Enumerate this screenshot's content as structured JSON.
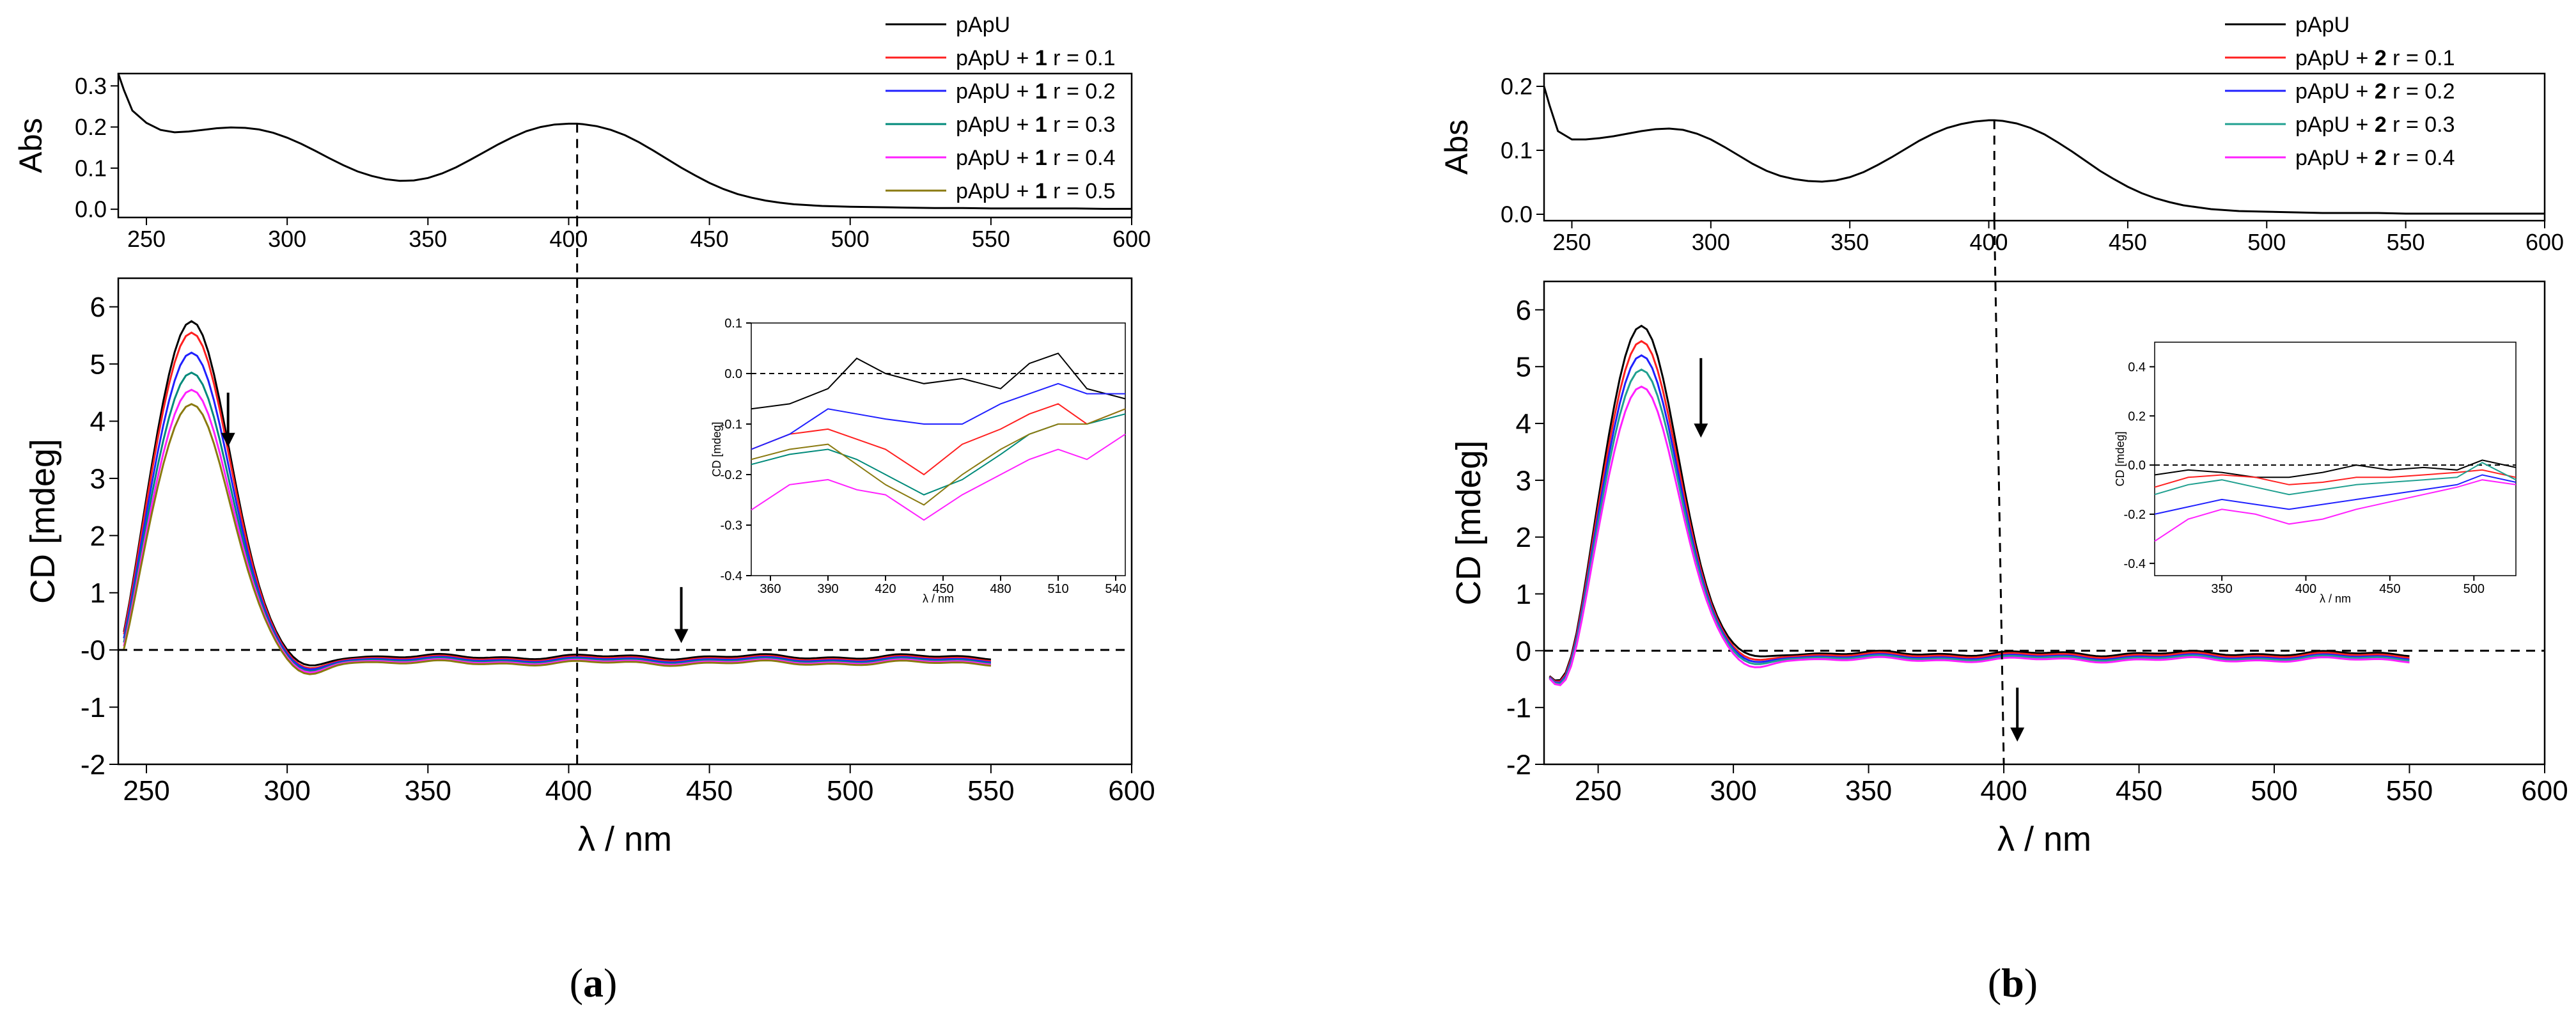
{
  "figure": {
    "panels": [
      {
        "caption_open": "(",
        "caption_letter": "a",
        "caption_close": ")",
        "legend": [
          {
            "label": "pApU",
            "color": "#000000"
          },
          {
            "prefix": "pApU + ",
            "bold": "1",
            "suffix": " r = 0.1",
            "color": "#ff2020"
          },
          {
            "prefix": "pApU + ",
            "bold": "1",
            "suffix": " r = 0.2",
            "color": "#2020ff"
          },
          {
            "prefix": "pApU + ",
            "bold": "1",
            "suffix": " r = 0.3",
            "color": "#008a7a"
          },
          {
            "prefix": "pApU + ",
            "bold": "1",
            "suffix": " r = 0.4",
            "color": "#ff20ff"
          },
          {
            "prefix": "pApU + ",
            "bold": "1",
            "suffix": " r = 0.5",
            "color": "#8a7a10"
          }
        ]
      },
      {
        "caption_open": "(",
        "caption_letter": "b",
        "caption_close": ")",
        "legend": [
          {
            "label": "pApU",
            "color": "#000000"
          },
          {
            "prefix": "pApU + ",
            "bold": "2",
            "suffix": " r = 0.1",
            "color": "#ff2020"
          },
          {
            "prefix": "pApU + ",
            "bold": "2",
            "suffix": " r = 0.2",
            "color": "#2020ff"
          },
          {
            "prefix": "pApU + ",
            "bold": "2",
            "suffix": " r = 0.3",
            "color": "#20a090"
          },
          {
            "prefix": "pApU + ",
            "bold": "2",
            "suffix": " r = 0.4",
            "color": "#ff20ff"
          }
        ]
      }
    ]
  },
  "chart_data": [
    {
      "id": "a-abs",
      "type": "line",
      "title": "",
      "xlabel": "",
      "ylabel": "Abs",
      "xlim": [
        240,
        600
      ],
      "ylim": [
        -0.02,
        0.33
      ],
      "grid": false,
      "xticks": [
        250,
        300,
        350,
        400,
        450,
        500,
        550,
        600
      ],
      "yticks": [
        0.0,
        0.1,
        0.2,
        0.3
      ],
      "ytick_labels": [
        "0.0",
        "0.1",
        "0.2",
        "0.3"
      ],
      "marker_x": 403,
      "series": [
        {
          "name": "pApU",
          "color": "#000000",
          "x": [
            240,
            242,
            245,
            250,
            255,
            260,
            265,
            270,
            275,
            280,
            285,
            290,
            295,
            300,
            305,
            310,
            315,
            320,
            325,
            330,
            335,
            340,
            345,
            350,
            355,
            360,
            365,
            370,
            375,
            380,
            385,
            390,
            395,
            400,
            403,
            405,
            410,
            415,
            420,
            425,
            430,
            435,
            440,
            445,
            450,
            455,
            460,
            465,
            470,
            475,
            480,
            490,
            500,
            510,
            520,
            530,
            540,
            550,
            560,
            570,
            580,
            590,
            600
          ],
          "y": [
            0.33,
            0.29,
            0.24,
            0.21,
            0.193,
            0.187,
            0.189,
            0.193,
            0.197,
            0.199,
            0.198,
            0.194,
            0.186,
            0.174,
            0.159,
            0.142,
            0.124,
            0.107,
            0.092,
            0.081,
            0.073,
            0.069,
            0.07,
            0.076,
            0.087,
            0.102,
            0.12,
            0.139,
            0.158,
            0.175,
            0.19,
            0.2,
            0.206,
            0.208,
            0.208,
            0.207,
            0.202,
            0.193,
            0.18,
            0.163,
            0.143,
            0.122,
            0.101,
            0.082,
            0.064,
            0.049,
            0.037,
            0.028,
            0.021,
            0.016,
            0.012,
            0.008,
            0.006,
            0.005,
            0.004,
            0.003,
            0.003,
            0.002,
            0.002,
            0.002,
            0.002,
            0.001,
            0.001
          ]
        }
      ]
    },
    {
      "id": "a-cd",
      "type": "line",
      "title": "",
      "xlabel": "λ / nm",
      "ylabel": "CD [mdeg]",
      "xlim": [
        240,
        600
      ],
      "ylim": [
        -2,
        6.5
      ],
      "grid": false,
      "xticks": [
        250,
        300,
        350,
        400,
        450,
        500,
        550,
        600
      ],
      "yticks": [
        -2,
        -1,
        0,
        1,
        2,
        3,
        4,
        5,
        6
      ],
      "ytick_labels": [
        "-2",
        "-1",
        "-0",
        "1",
        "2",
        "3",
        "4",
        "5",
        "6"
      ],
      "zero_line": true,
      "marker_x": 403,
      "arrows": [
        {
          "x": 279,
          "y_from": 4.5,
          "y_to": 3.55
        },
        {
          "x": 440,
          "y_from": 1.1,
          "y_to": 0.12
        }
      ],
      "series": [
        {
          "name": "pApU",
          "color": "#000000",
          "peak": 5.75,
          "min": -0.35,
          "tail": -0.12
        },
        {
          "name": "pApU + 1 r = 0.1",
          "color": "#ff2020",
          "peak": 5.55,
          "min": -0.4,
          "tail": -0.15
        },
        {
          "name": "pApU + 1 r = 0.2",
          "color": "#2020ff",
          "peak": 5.2,
          "min": -0.42,
          "tail": -0.17
        },
        {
          "name": "pApU + 1 r = 0.3",
          "color": "#008a7a",
          "peak": 4.85,
          "min": -0.45,
          "tail": -0.19
        },
        {
          "name": "pApU + 1 r = 0.4",
          "color": "#ff20ff",
          "peak": 4.55,
          "min": -0.47,
          "tail": -0.21
        },
        {
          "name": "pApU + 1 r = 0.5",
          "color": "#8a7a10",
          "peak": 4.3,
          "min": -0.5,
          "tail": -0.23
        }
      ]
    },
    {
      "id": "a-inset",
      "type": "line",
      "title": "",
      "xlabel": "λ / nm",
      "ylabel": "CD [mdeg]",
      "xlim": [
        350,
        545
      ],
      "ylim": [
        -0.4,
        0.1
      ],
      "grid": false,
      "xticks": [
        360,
        390,
        420,
        450,
        480,
        510,
        540
      ],
      "yticks": [
        -0.4,
        -0.3,
        -0.2,
        -0.1,
        0.0,
        0.1
      ],
      "ytick_labels": [
        "-0.4",
        "-0.3",
        "-0.2",
        "-0.1",
        "0.0",
        "0.1"
      ],
      "zero_line": true,
      "series": [
        {
          "name": "pApU",
          "color": "#000000",
          "x": [
            350,
            370,
            390,
            405,
            420,
            440,
            460,
            480,
            495,
            510,
            525,
            545
          ],
          "y": [
            -0.07,
            -0.06,
            -0.03,
            0.03,
            0.0,
            -0.02,
            -0.01,
            -0.03,
            0.02,
            0.04,
            -0.03,
            -0.05
          ]
        },
        {
          "name": "pApU + 1 r = 0.1",
          "color": "#ff2020",
          "x": [
            350,
            370,
            390,
            405,
            420,
            440,
            460,
            480,
            495,
            510,
            525,
            545
          ],
          "y": [
            -0.15,
            -0.12,
            -0.11,
            -0.13,
            -0.15,
            -0.2,
            -0.14,
            -0.11,
            -0.08,
            -0.06,
            -0.1,
            -0.07
          ]
        },
        {
          "name": "pApU + 1 r = 0.2",
          "color": "#2020ff",
          "x": [
            350,
            370,
            390,
            405,
            420,
            440,
            460,
            480,
            495,
            510,
            525,
            545
          ],
          "y": [
            -0.15,
            -0.12,
            -0.07,
            -0.08,
            -0.09,
            -0.1,
            -0.1,
            -0.06,
            -0.04,
            -0.02,
            -0.04,
            -0.04
          ]
        },
        {
          "name": "pApU + 1 r = 0.3",
          "color": "#008a7a",
          "x": [
            350,
            370,
            390,
            405,
            420,
            440,
            460,
            480,
            495,
            510,
            525,
            545
          ],
          "y": [
            -0.18,
            -0.16,
            -0.15,
            -0.17,
            -0.2,
            -0.24,
            -0.21,
            -0.16,
            -0.12,
            -0.1,
            -0.1,
            -0.08
          ]
        },
        {
          "name": "pApU + 1 r = 0.4",
          "color": "#ff20ff",
          "x": [
            350,
            370,
            390,
            405,
            420,
            440,
            460,
            480,
            495,
            510,
            525,
            545
          ],
          "y": [
            -0.27,
            -0.22,
            -0.21,
            -0.23,
            -0.24,
            -0.29,
            -0.24,
            -0.2,
            -0.17,
            -0.15,
            -0.17,
            -0.12
          ]
        },
        {
          "name": "pApU + 1 r = 0.5",
          "color": "#8a7a10",
          "x": [
            350,
            370,
            390,
            405,
            420,
            440,
            460,
            480,
            495,
            510,
            525,
            545
          ],
          "y": [
            -0.17,
            -0.15,
            -0.14,
            -0.18,
            -0.22,
            -0.26,
            -0.2,
            -0.15,
            -0.12,
            -0.1,
            -0.1,
            -0.07
          ]
        }
      ]
    },
    {
      "id": "b-abs",
      "type": "line",
      "title": "",
      "xlabel": "",
      "ylabel": "Abs",
      "xlim": [
        240,
        600
      ],
      "ylim": [
        -0.01,
        0.22
      ],
      "grid": false,
      "xticks": [
        250,
        300,
        350,
        400,
        450,
        500,
        550,
        600
      ],
      "yticks": [
        0.0,
        0.1,
        0.2
      ],
      "ytick_labels": [
        "0.0",
        "0.1",
        "0.2"
      ],
      "marker_x": 402,
      "series": [
        {
          "name": "pApU",
          "color": "#000000",
          "x": [
            240,
            242,
            245,
            250,
            255,
            260,
            265,
            270,
            275,
            280,
            285,
            290,
            295,
            300,
            305,
            310,
            315,
            320,
            325,
            330,
            335,
            340,
            345,
            350,
            355,
            360,
            365,
            370,
            375,
            380,
            385,
            390,
            395,
            400,
            402,
            405,
            410,
            415,
            420,
            425,
            430,
            435,
            440,
            445,
            450,
            455,
            460,
            465,
            470,
            475,
            480,
            490,
            500,
            510,
            520,
            530,
            540,
            550,
            560,
            570,
            580,
            590,
            600
          ],
          "y": [
            0.2,
            0.17,
            0.13,
            0.117,
            0.117,
            0.119,
            0.122,
            0.126,
            0.13,
            0.133,
            0.134,
            0.132,
            0.126,
            0.117,
            0.105,
            0.092,
            0.079,
            0.068,
            0.06,
            0.055,
            0.052,
            0.051,
            0.053,
            0.058,
            0.066,
            0.077,
            0.089,
            0.102,
            0.115,
            0.126,
            0.135,
            0.141,
            0.145,
            0.147,
            0.147,
            0.146,
            0.142,
            0.135,
            0.125,
            0.112,
            0.098,
            0.083,
            0.068,
            0.055,
            0.043,
            0.033,
            0.025,
            0.019,
            0.014,
            0.011,
            0.008,
            0.005,
            0.004,
            0.003,
            0.002,
            0.002,
            0.002,
            0.001,
            0.001,
            0.001,
            0.001,
            0.001,
            0.001
          ]
        }
      ]
    },
    {
      "id": "b-cd",
      "type": "line",
      "title": "",
      "xlabel": "λ / nm",
      "ylabel": "CD [mdeg]",
      "xlim": [
        230,
        600
      ],
      "ylim": [
        -2,
        6.5
      ],
      "grid": false,
      "xticks": [
        250,
        300,
        350,
        400,
        450,
        500,
        550,
        600
      ],
      "yticks": [
        -2,
        -1,
        0,
        1,
        2,
        3,
        4,
        5,
        6
      ],
      "ytick_labels": [
        "-2",
        "-1",
        "0",
        "1",
        "2",
        "3",
        "4",
        "5",
        "6"
      ],
      "zero_line": true,
      "marker_x": 400,
      "arrows": [
        {
          "x": 288,
          "y_from": 5.15,
          "y_to": 3.75
        },
        {
          "x": 405,
          "y_from": -0.65,
          "y_to": -1.6
        }
      ],
      "series": [
        {
          "name": "pApU",
          "color": "#000000",
          "peak": 5.72,
          "min": -0.15,
          "tail": -0.05
        },
        {
          "name": "pApU + 2 r = 0.1",
          "color": "#ff2020",
          "peak": 5.45,
          "min": -0.22,
          "tail": -0.08
        },
        {
          "name": "pApU + 2 r = 0.2",
          "color": "#2020ff",
          "peak": 5.2,
          "min": -0.26,
          "tail": -0.11
        },
        {
          "name": "pApU + 2 r = 0.3",
          "color": "#20a090",
          "peak": 4.95,
          "min": -0.3,
          "tail": -0.13
        },
        {
          "name": "pApU + 2 r = 0.4",
          "color": "#ff20ff",
          "peak": 4.65,
          "min": -0.36,
          "tail": -0.16
        }
      ]
    },
    {
      "id": "b-inset",
      "type": "line",
      "title": "",
      "xlabel": "λ / nm",
      "ylabel": "CD [mdeg]",
      "xlim": [
        310,
        525
      ],
      "ylim": [
        -0.45,
        0.5
      ],
      "grid": false,
      "xticks": [
        350,
        400,
        450,
        500
      ],
      "yticks": [
        -0.4,
        -0.2,
        0.0,
        0.2,
        0.4
      ],
      "ytick_labels": [
        "-0.4",
        "-0.2",
        "0.0",
        "0.2",
        "0.4"
      ],
      "zero_line": true,
      "series": [
        {
          "name": "pApU",
          "color": "#000000",
          "x": [
            310,
            330,
            350,
            370,
            390,
            410,
            430,
            450,
            470,
            490,
            505,
            525
          ],
          "y": [
            -0.04,
            -0.02,
            -0.03,
            -0.05,
            -0.05,
            -0.03,
            0.0,
            -0.02,
            -0.01,
            -0.02,
            0.02,
            -0.01
          ]
        },
        {
          "name": "pApU + 2 r = 0.1",
          "color": "#ff2020",
          "x": [
            310,
            330,
            350,
            370,
            390,
            410,
            430,
            450,
            470,
            490,
            505,
            525
          ],
          "y": [
            -0.09,
            -0.05,
            -0.04,
            -0.05,
            -0.08,
            -0.07,
            -0.05,
            -0.05,
            -0.04,
            -0.03,
            -0.02,
            -0.05
          ]
        },
        {
          "name": "pApU + 2 r = 0.2",
          "color": "#2020ff",
          "x": [
            310,
            330,
            350,
            370,
            390,
            410,
            430,
            450,
            470,
            490,
            505,
            525
          ],
          "y": [
            -0.2,
            -0.17,
            -0.14,
            -0.16,
            -0.18,
            -0.16,
            -0.14,
            -0.12,
            -0.1,
            -0.08,
            -0.04,
            -0.07
          ]
        },
        {
          "name": "pApU + 2 r = 0.3",
          "color": "#20a090",
          "x": [
            310,
            330,
            350,
            370,
            390,
            410,
            430,
            450,
            470,
            490,
            505,
            525
          ],
          "y": [
            -0.12,
            -0.08,
            -0.06,
            -0.09,
            -0.12,
            -0.1,
            -0.08,
            -0.07,
            -0.06,
            -0.05,
            0.01,
            -0.06
          ]
        },
        {
          "name": "pApU + 2 r = 0.4",
          "color": "#ff20ff",
          "x": [
            310,
            330,
            350,
            370,
            390,
            410,
            430,
            450,
            470,
            490,
            505,
            525
          ],
          "y": [
            -0.31,
            -0.22,
            -0.18,
            -0.2,
            -0.24,
            -0.22,
            -0.18,
            -0.15,
            -0.12,
            -0.09,
            -0.06,
            -0.08
          ]
        }
      ]
    }
  ]
}
